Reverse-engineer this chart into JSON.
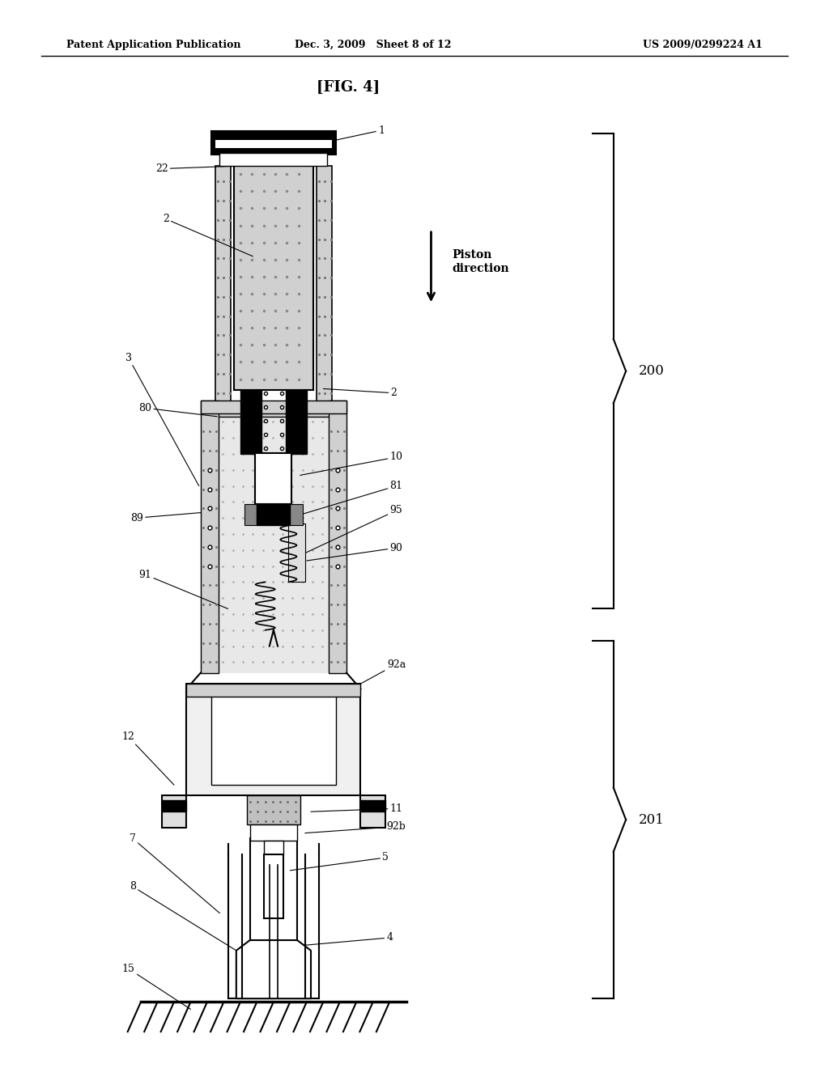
{
  "title_header_left": "Patent Application Publication",
  "title_header_mid": "Dec. 3, 2009   Sheet 8 of 12",
  "title_header_right": "US 2009/0299224 A1",
  "fig_label": "[FIG. 4]",
  "background_color": "#ffffff",
  "text_color": "#000000",
  "bracket_label_200": "200",
  "bracket_label_201": "201",
  "piston_text": "Piston\ndirection"
}
